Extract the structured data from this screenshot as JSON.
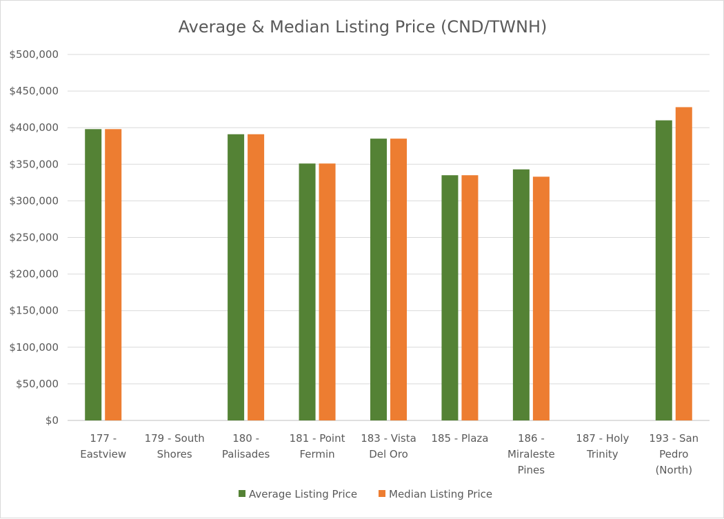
{
  "chart_data": {
    "type": "bar",
    "title": "Average & Median Listing Price (CND/TWNH)",
    "categories": [
      [
        "177 -",
        "Eastview"
      ],
      [
        "179 - South",
        "Shores"
      ],
      [
        "180 -",
        "Palisades"
      ],
      [
        "181 - Point",
        "Fermin"
      ],
      [
        "183 - Vista",
        "Del Oro"
      ],
      [
        "185 - Plaza"
      ],
      [
        "186 -",
        "Miraleste",
        "Pines"
      ],
      [
        "187 - Holy",
        "Trinity"
      ],
      [
        "193 - San",
        "Pedro",
        "(North)"
      ]
    ],
    "series": [
      {
        "name": "Average Listing Price",
        "color": "#548235",
        "values": [
          398000,
          null,
          391000,
          351000,
          385000,
          335000,
          343000,
          null,
          410000
        ]
      },
      {
        "name": "Median Listing Price",
        "color": "#ed7d31",
        "values": [
          398000,
          null,
          391000,
          351000,
          385000,
          335000,
          333000,
          null,
          428000
        ]
      }
    ],
    "ylim": [
      0,
      500000
    ],
    "yticks": [
      "$0",
      "$50,000",
      "$100,000",
      "$150,000",
      "$200,000",
      "$250,000",
      "$300,000",
      "$350,000",
      "$400,000",
      "$450,000",
      "$500,000"
    ],
    "grid": true,
    "legend_position": "bottom"
  }
}
